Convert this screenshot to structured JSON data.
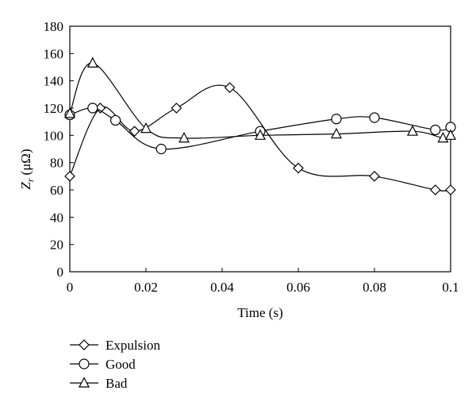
{
  "chart_data": {
    "type": "line",
    "xlabel": "Time (s)",
    "ylabel_main": "Z",
    "ylabel_sub": "r",
    "ylabel_unit": "(μΩ)",
    "xlim": [
      0,
      0.1
    ],
    "ylim": [
      0,
      180
    ],
    "x_ticks": [
      "0",
      "0.02",
      "0.04",
      "0.06",
      "0.08",
      "0.1"
    ],
    "y_ticks": [
      "0",
      "20",
      "40",
      "60",
      "80",
      "100",
      "120",
      "140",
      "160",
      "180"
    ],
    "grid": false,
    "legend_position": "bottom-left",
    "series": [
      {
        "name": "Expulsion",
        "marker": "diamond",
        "x": [
          0,
          0.008,
          0.017,
          0.028,
          0.042,
          0.06,
          0.08,
          0.096,
          0.1
        ],
        "y": [
          70,
          120,
          103,
          120,
          135,
          76,
          70,
          60,
          60
        ]
      },
      {
        "name": "Good",
        "marker": "circle",
        "x": [
          0,
          0.006,
          0.012,
          0.024,
          0.05,
          0.07,
          0.08,
          0.096,
          0.1
        ],
        "y": [
          115,
          120,
          111,
          90,
          103,
          112,
          113,
          104,
          106
        ]
      },
      {
        "name": "Bad",
        "marker": "triangle",
        "x": [
          0,
          0.006,
          0.02,
          0.03,
          0.05,
          0.07,
          0.09,
          0.098,
          0.1
        ],
        "y": [
          116,
          153,
          105,
          98,
          100,
          101,
          103,
          98,
          100
        ]
      }
    ]
  }
}
